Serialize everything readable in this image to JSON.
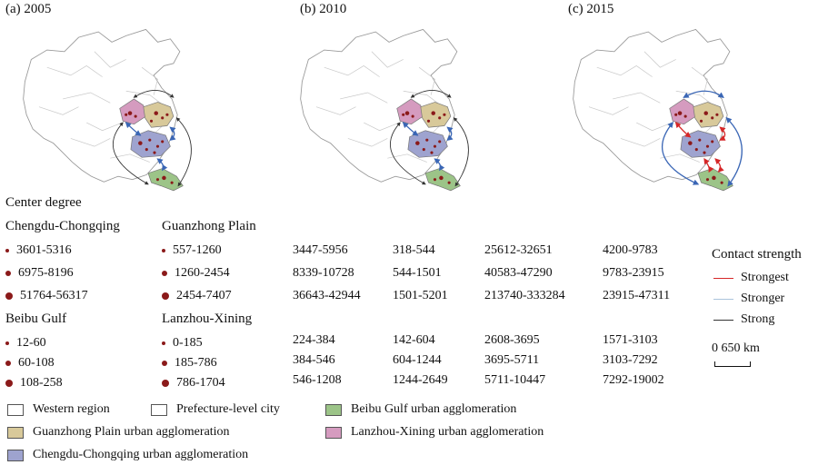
{
  "panels": [
    {
      "label": "(a) 2005"
    },
    {
      "label": "(b) 2010"
    },
    {
      "label": "(c) 2015"
    }
  ],
  "center_degree": {
    "title": "Center degree",
    "groups": [
      {
        "name": "Chengdu-Chongqing",
        "ranges": [
          "3601-5316",
          "6975-8196",
          "51764-56317"
        ]
      },
      {
        "name": "Guanzhong Plain",
        "ranges": [
          "557-1260",
          "1260-2454",
          "2454-7407"
        ]
      },
      {
        "name": "Beibu Gulf",
        "ranges": [
          "12-60",
          "60-108",
          "108-258"
        ]
      },
      {
        "name": "Lanzhou-Xining",
        "ranges": [
          "0-185",
          "185-786",
          "786-1704"
        ]
      }
    ]
  },
  "ranges_table": {
    "block1": [
      [
        "3447-5956",
        "318-544",
        "25612-32651",
        "4200-9783"
      ],
      [
        "8339-10728",
        "544-1501",
        "40583-47290",
        "9783-23915"
      ],
      [
        "36643-42944",
        "1501-5201",
        "213740-333284",
        "23915-47311"
      ]
    ],
    "block2": [
      [
        "224-384",
        "142-604",
        "2608-3695",
        "1571-3103"
      ],
      [
        "384-546",
        "604-1244",
        "3695-5711",
        "3103-7292"
      ],
      [
        "546-1208",
        "1244-2649",
        "5711-10447",
        "7292-19002"
      ]
    ]
  },
  "contact_strength": {
    "title": "Contact strength",
    "items": [
      {
        "label": "Strongest",
        "color": "#d62728"
      },
      {
        "label": "Stronger",
        "color": "#aac4dc"
      },
      {
        "label": "Strong",
        "color": "#333333"
      }
    ]
  },
  "scale": {
    "label": "0    650 km"
  },
  "bottom_legend": [
    {
      "label": "Western region",
      "color": "#ffffff"
    },
    {
      "label": "Prefecture-level city",
      "color": "#ffffff"
    },
    {
      "label": "Beibu Gulf urban agglomeration",
      "color": "#9cc488"
    },
    {
      "label": "Guanzhong Plain urban agglomeration",
      "color": "#d8c99a"
    },
    {
      "label": "Lanzhou-Xining urban agglomeration",
      "color": "#d59bbf"
    },
    {
      "label": "Chengdu-Chongqing urban agglomeration",
      "color": "#9ea3cf"
    }
  ],
  "colors": {
    "guanzhong": "#d8c99a",
    "lanzhou": "#d59bbf",
    "chengdu": "#9ea3cf",
    "beibu": "#9cc488",
    "dot": "#8b1a1a",
    "arrow_blue": "#3a66b5",
    "arrow_red": "#d62728",
    "arrow_black": "#333333"
  }
}
